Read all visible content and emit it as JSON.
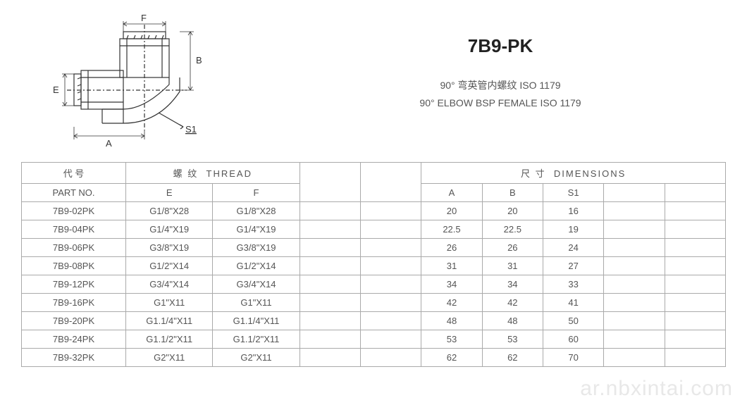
{
  "product": {
    "code": "7B9-PK",
    "desc_cn": "90° 弯英管内螺纹 ISO 1179",
    "desc_en": "90° ELBOW BSP FEMALE  ISO 1179"
  },
  "diagram": {
    "labels": {
      "F": "F",
      "B": "B",
      "E": "E",
      "A": "A",
      "S1": "S1"
    }
  },
  "table": {
    "headers": {
      "part_no_cn": "代  号",
      "part_no_en": "PART NO.",
      "thread_cn": "螺  纹",
      "thread_en": "THREAD",
      "dimensions_cn": "尺  寸",
      "dimensions_en": "DIMENSIONS",
      "E": "E",
      "F": "F",
      "A": "A",
      "B": "B",
      "S1": "S1"
    },
    "rows": [
      {
        "part": "7B9-02PK",
        "E": "G1/8\"X28",
        "F": "G1/8\"X28",
        "A": "20",
        "B": "20",
        "S1": "16"
      },
      {
        "part": "7B9-04PK",
        "E": "G1/4\"X19",
        "F": "G1/4\"X19",
        "A": "22.5",
        "B": "22.5",
        "S1": "19"
      },
      {
        "part": "7B9-06PK",
        "E": "G3/8\"X19",
        "F": "G3/8\"X19",
        "A": "26",
        "B": "26",
        "S1": "24"
      },
      {
        "part": "7B9-08PK",
        "E": "G1/2\"X14",
        "F": "G1/2\"X14",
        "A": "31",
        "B": "31",
        "S1": "27"
      },
      {
        "part": "7B9-12PK",
        "E": "G3/4\"X14",
        "F": "G3/4\"X14",
        "A": "34",
        "B": "34",
        "S1": "33"
      },
      {
        "part": "7B9-16PK",
        "E": "G1\"X11",
        "F": "G1\"X11",
        "A": "42",
        "B": "42",
        "S1": "41"
      },
      {
        "part": "7B9-20PK",
        "E": "G1.1/4\"X11",
        "F": "G1.1/4\"X11",
        "A": "48",
        "B": "48",
        "S1": "50"
      },
      {
        "part": "7B9-24PK",
        "E": "G1.1/2\"X11",
        "F": "G1.1/2\"X11",
        "A": "53",
        "B": "53",
        "S1": "60"
      },
      {
        "part": "7B9-32PK",
        "E": "G2\"X11",
        "F": "G2\"X11",
        "A": "62",
        "B": "62",
        "S1": "70"
      }
    ]
  },
  "watermark": "ar.nbxintai.com",
  "colors": {
    "text": "#555555",
    "border": "#aaaaaa",
    "title": "#222222",
    "watermark": "#e8e8e8",
    "bg": "#ffffff"
  }
}
